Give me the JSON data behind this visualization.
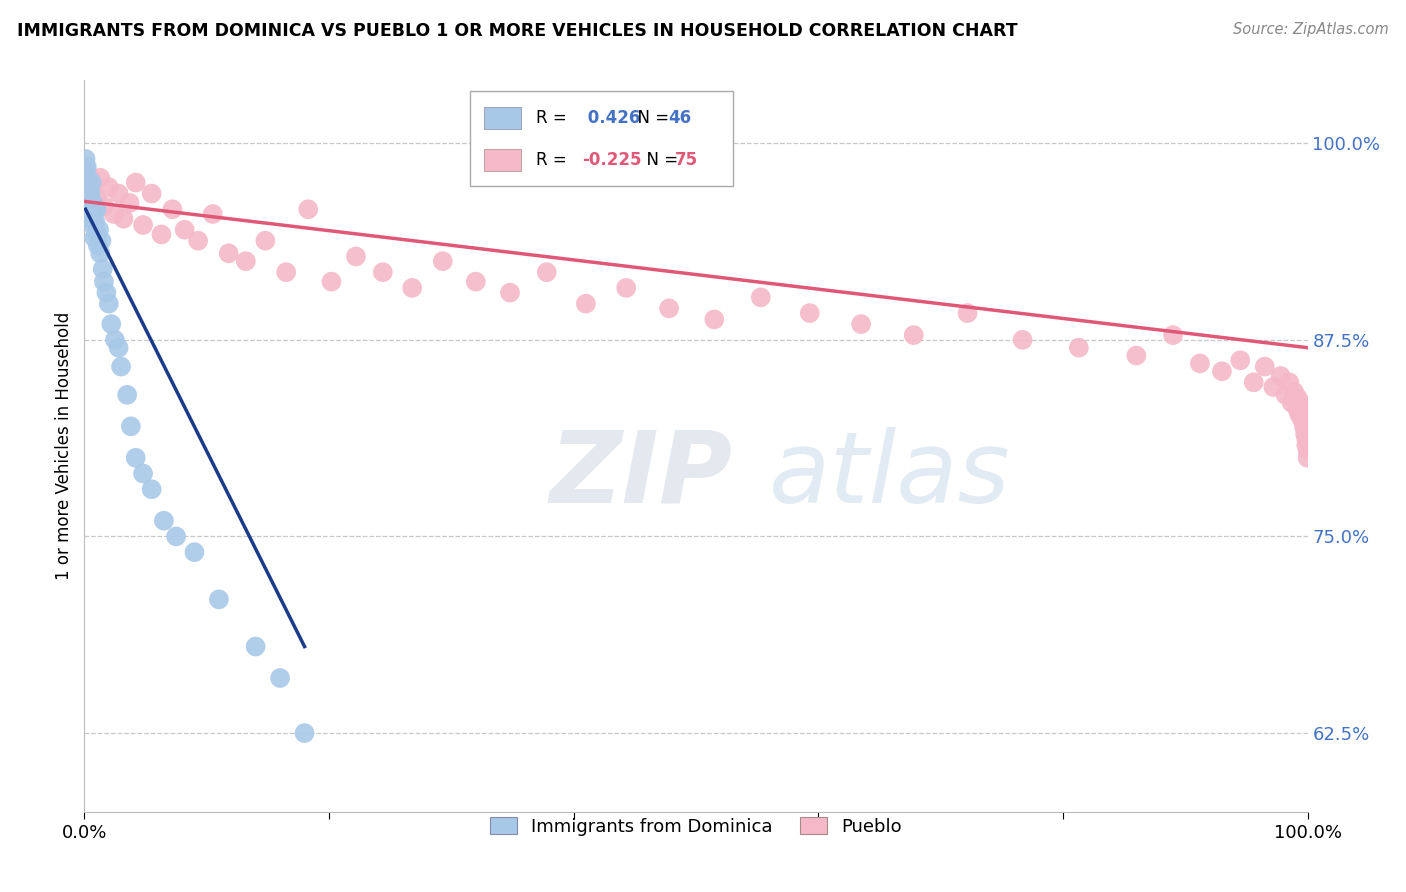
{
  "title": "IMMIGRANTS FROM DOMINICA VS PUEBLO 1 OR MORE VEHICLES IN HOUSEHOLD CORRELATION CHART",
  "source_text": "Source: ZipAtlas.com",
  "ylabel": "1 or more Vehicles in Household",
  "xmin": 0.0,
  "xmax": 1.0,
  "ymin": 0.575,
  "ymax": 1.04,
  "yticks": [
    0.625,
    0.75,
    0.875,
    1.0
  ],
  "ytick_labels": [
    "62.5%",
    "75.0%",
    "87.5%",
    "100.0%"
  ],
  "blue_R": 0.426,
  "blue_N": 46,
  "pink_R": -0.225,
  "pink_N": 75,
  "blue_color": "#a8c8e8",
  "pink_color": "#f4b8c8",
  "blue_trend_color": "#1a3a8a",
  "pink_trend_color": "#e05878",
  "watermark_zip": "ZIP",
  "watermark_atlas": "atlas",
  "blue_scatter_x": [
    0.001,
    0.001,
    0.001,
    0.002,
    0.002,
    0.002,
    0.003,
    0.003,
    0.003,
    0.004,
    0.004,
    0.005,
    0.005,
    0.006,
    0.006,
    0.007,
    0.007,
    0.008,
    0.008,
    0.009,
    0.01,
    0.01,
    0.011,
    0.012,
    0.013,
    0.014,
    0.015,
    0.016,
    0.018,
    0.02,
    0.022,
    0.025,
    0.028,
    0.03,
    0.035,
    0.038,
    0.042,
    0.048,
    0.055,
    0.065,
    0.075,
    0.09,
    0.11,
    0.14,
    0.16,
    0.18
  ],
  "blue_scatter_y": [
    0.99,
    0.985,
    0.975,
    0.985,
    0.975,
    0.965,
    0.978,
    0.972,
    0.96,
    0.97,
    0.955,
    0.968,
    0.952,
    0.975,
    0.958,
    0.962,
    0.948,
    0.955,
    0.94,
    0.95,
    0.958,
    0.942,
    0.935,
    0.945,
    0.93,
    0.938,
    0.92,
    0.912,
    0.905,
    0.898,
    0.885,
    0.875,
    0.87,
    0.858,
    0.84,
    0.82,
    0.8,
    0.79,
    0.78,
    0.76,
    0.75,
    0.74,
    0.71,
    0.68,
    0.66,
    0.625
  ],
  "pink_scatter_x": [
    0.001,
    0.002,
    0.003,
    0.005,
    0.007,
    0.01,
    0.013,
    0.016,
    0.02,
    0.024,
    0.028,
    0.032,
    0.037,
    0.042,
    0.048,
    0.055,
    0.063,
    0.072,
    0.082,
    0.093,
    0.105,
    0.118,
    0.132,
    0.148,
    0.165,
    0.183,
    0.202,
    0.222,
    0.244,
    0.268,
    0.293,
    0.32,
    0.348,
    0.378,
    0.41,
    0.443,
    0.478,
    0.515,
    0.553,
    0.593,
    0.635,
    0.678,
    0.722,
    0.767,
    0.813,
    0.86,
    0.89,
    0.912,
    0.93,
    0.945,
    0.956,
    0.965,
    0.972,
    0.978,
    0.982,
    0.985,
    0.987,
    0.989,
    0.99,
    0.991,
    0.992,
    0.993,
    0.994,
    0.995,
    0.996,
    0.997,
    0.997,
    0.998,
    0.998,
    0.999,
    0.999,
    0.999,
    1.0,
    1.0,
    1.0
  ],
  "pink_scatter_y": [
    0.975,
    0.982,
    0.968,
    0.978,
    0.972,
    0.965,
    0.978,
    0.96,
    0.972,
    0.955,
    0.968,
    0.952,
    0.962,
    0.975,
    0.948,
    0.968,
    0.942,
    0.958,
    0.945,
    0.938,
    0.955,
    0.93,
    0.925,
    0.938,
    0.918,
    0.958,
    0.912,
    0.928,
    0.918,
    0.908,
    0.925,
    0.912,
    0.905,
    0.918,
    0.898,
    0.908,
    0.895,
    0.888,
    0.902,
    0.892,
    0.885,
    0.878,
    0.892,
    0.875,
    0.87,
    0.865,
    0.878,
    0.86,
    0.855,
    0.862,
    0.848,
    0.858,
    0.845,
    0.852,
    0.84,
    0.848,
    0.835,
    0.842,
    0.838,
    0.832,
    0.838,
    0.828,
    0.835,
    0.825,
    0.832,
    0.82,
    0.828,
    0.822,
    0.815,
    0.818,
    0.812,
    0.808,
    0.815,
    0.805,
    0.8
  ],
  "pink_trend_x": [
    0.0,
    1.0
  ],
  "pink_trend_y": [
    0.963,
    0.87
  ],
  "blue_trend_x": [
    0.001,
    0.18
  ],
  "blue_trend_y": [
    0.958,
    0.68
  ]
}
